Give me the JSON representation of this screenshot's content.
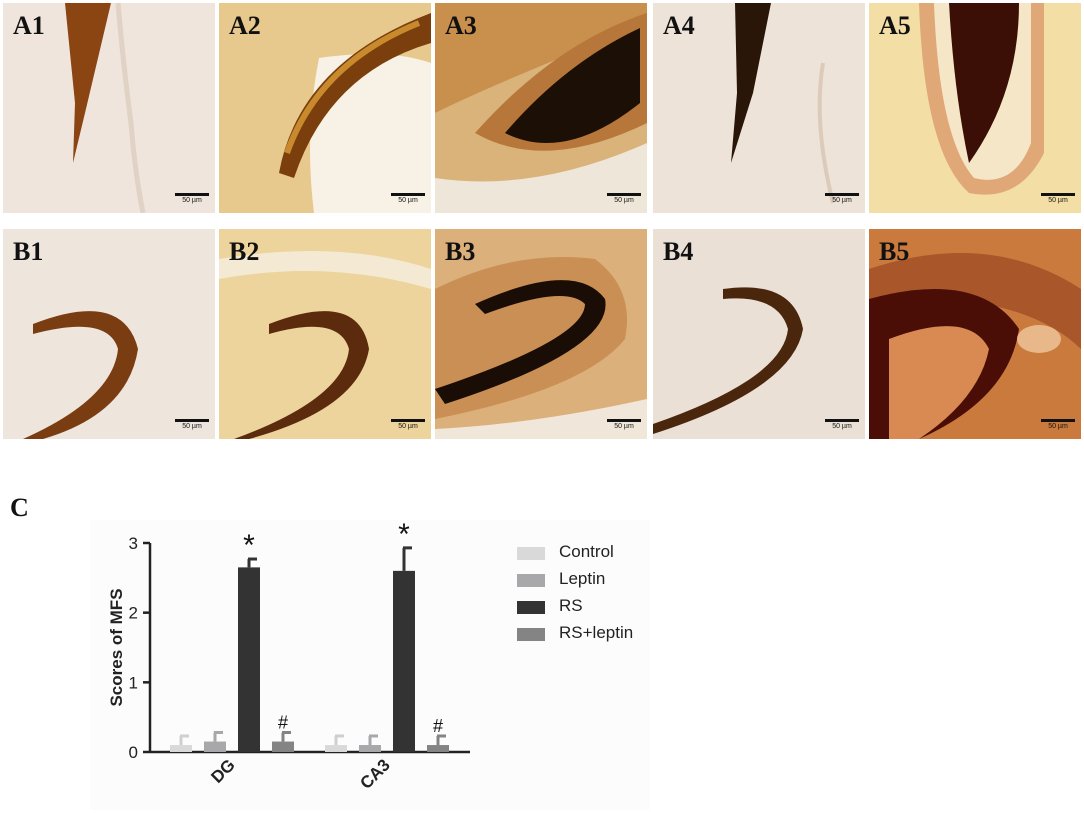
{
  "panels": [
    {
      "label": "A1",
      "scale": "50 µm"
    },
    {
      "label": "A2",
      "scale": "50 µm"
    },
    {
      "label": "A3",
      "scale": "50 µm"
    },
    {
      "label": "A4",
      "scale": "50 µm"
    },
    {
      "label": "A5",
      "scale": "50 µm"
    },
    {
      "label": "B1",
      "scale": "50 µm"
    },
    {
      "label": "B2",
      "scale": "50 µm"
    },
    {
      "label": "B3",
      "scale": "50 µm"
    },
    {
      "label": "B4",
      "scale": "50 µm"
    },
    {
      "label": "B5",
      "scale": "50 µm"
    }
  ],
  "section_c_label": "C",
  "chart_data": {
    "type": "bar",
    "categories": [
      "DG",
      "CA3"
    ],
    "series": [
      {
        "name": "Control",
        "color": "#d9d9d9",
        "values": [
          0.1,
          0.1
        ],
        "errors": [
          0.13,
          0.13
        ],
        "annotations": [
          "",
          ""
        ]
      },
      {
        "name": "Leptin",
        "color": "#a8a8ab",
        "values": [
          0.15,
          0.1
        ],
        "errors": [
          0.13,
          0.13
        ],
        "annotations": [
          "",
          ""
        ]
      },
      {
        "name": "RS",
        "color": "#333333",
        "values": [
          2.65,
          2.6
        ],
        "errors": [
          0.12,
          0.33
        ],
        "annotations": [
          "*",
          "*"
        ]
      },
      {
        "name": "RS+leptin",
        "color": "#848484",
        "values": [
          0.15,
          0.1
        ],
        "errors": [
          0.13,
          0.13
        ],
        "annotations": [
          "#",
          "#"
        ]
      }
    ],
    "xlabel": "",
    "ylabel": "Scores of MFS",
    "ylim": [
      0,
      3
    ],
    "yticks": [
      0,
      1,
      2,
      3
    ],
    "grid": false,
    "legend": "right"
  }
}
